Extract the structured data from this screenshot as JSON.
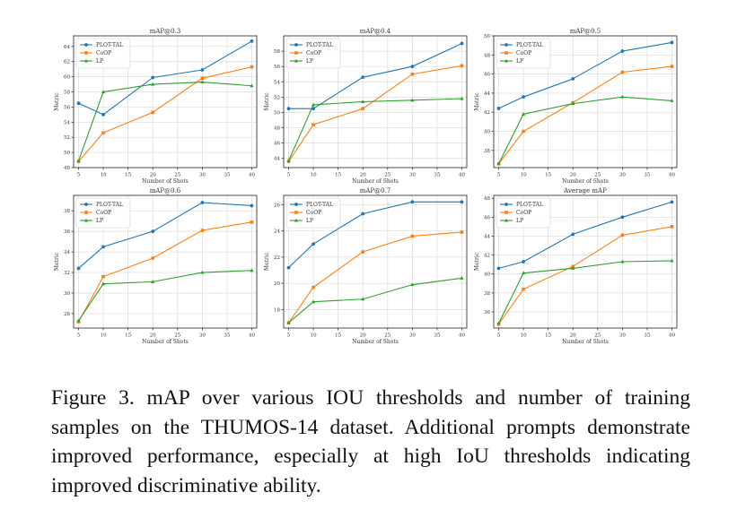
{
  "colors": {
    "PLOT-TAL": "#1f77b4",
    "CoOP": "#ff7f0e",
    "LP": "#2ca02c"
  },
  "chart_data": [
    {
      "type": "line",
      "title": "mAP@0.3",
      "xlabel": "Number of Shots",
      "ylabel": "Metric",
      "x": [
        5,
        10,
        20,
        30,
        40
      ],
      "xticks": [
        5,
        10,
        15,
        20,
        25,
        30,
        35,
        40
      ],
      "xlim": [
        4,
        41
      ],
      "ylim": [
        48.0,
        65.4
      ],
      "yticks": [
        48,
        50,
        52,
        54,
        56,
        58,
        60,
        62,
        64
      ],
      "grid": true,
      "legend": "top-left",
      "series": [
        {
          "name": "PLOT-TAL",
          "values": [
            56.5,
            55.0,
            59.9,
            60.9,
            64.7
          ]
        },
        {
          "name": "CoOP",
          "values": [
            48.8,
            52.6,
            55.3,
            59.8,
            61.3
          ]
        },
        {
          "name": "LP",
          "values": [
            48.9,
            58.0,
            59.0,
            59.3,
            58.8
          ]
        }
      ]
    },
    {
      "type": "line",
      "title": "mAP@0.4",
      "xlabel": "Number of Shots",
      "ylabel": "Metric",
      "x": [
        5,
        10,
        20,
        30,
        40
      ],
      "xticks": [
        5,
        10,
        15,
        20,
        25,
        30,
        35,
        40
      ],
      "xlim": [
        4,
        41
      ],
      "ylim": [
        42.8,
        60.0
      ],
      "yticks": [
        44,
        46,
        48,
        50,
        52,
        54,
        56,
        58
      ],
      "grid": true,
      "legend": "top-left",
      "series": [
        {
          "name": "PLOT-TAL",
          "values": [
            50.5,
            50.5,
            54.6,
            56.0,
            59.0
          ]
        },
        {
          "name": "CoOP",
          "values": [
            43.6,
            48.4,
            50.5,
            55.0,
            56.1
          ]
        },
        {
          "name": "LP",
          "values": [
            43.7,
            51.0,
            51.4,
            51.6,
            51.8
          ]
        }
      ]
    },
    {
      "type": "line",
      "title": "mAP@0.5",
      "xlabel": "Number of Shots",
      "ylabel": "Metric",
      "x": [
        5,
        10,
        20,
        30,
        40
      ],
      "xticks": [
        5,
        10,
        15,
        20,
        25,
        30,
        35,
        40
      ],
      "xlim": [
        4,
        41
      ],
      "ylim": [
        36.2,
        50.0
      ],
      "yticks": [
        38,
        40,
        42,
        44,
        46,
        48,
        50
      ],
      "grid": true,
      "legend": "top-left",
      "series": [
        {
          "name": "PLOT-TAL",
          "values": [
            42.4,
            43.6,
            45.5,
            48.4,
            49.3
          ]
        },
        {
          "name": "CoOP",
          "values": [
            36.6,
            40.0,
            43.0,
            46.2,
            46.8
          ]
        },
        {
          "name": "LP",
          "values": [
            36.6,
            41.8,
            42.9,
            43.6,
            43.2
          ]
        }
      ]
    },
    {
      "type": "line",
      "title": "mAP@0.6",
      "xlabel": "Number of Shots",
      "ylabel": "Metric",
      "x": [
        5,
        10,
        20,
        30,
        40
      ],
      "xticks": [
        5,
        10,
        15,
        20,
        25,
        30,
        35,
        40
      ],
      "xlim": [
        4,
        41
      ],
      "ylim": [
        26.6,
        39.5
      ],
      "yticks": [
        28,
        30,
        32,
        34,
        36,
        38
      ],
      "grid": true,
      "legend": "top-left",
      "series": [
        {
          "name": "PLOT-TAL",
          "values": [
            32.4,
            34.5,
            36.0,
            38.8,
            38.5
          ]
        },
        {
          "name": "CoOP",
          "values": [
            27.2,
            31.6,
            33.4,
            36.1,
            36.9
          ]
        },
        {
          "name": "LP",
          "values": [
            27.3,
            30.9,
            31.1,
            32.0,
            32.2
          ]
        }
      ]
    },
    {
      "type": "line",
      "title": "mAP@0.7",
      "xlabel": "Number of Shots",
      "ylabel": "Metric",
      "x": [
        5,
        10,
        20,
        30,
        40
      ],
      "xticks": [
        5,
        10,
        15,
        20,
        25,
        30,
        35,
        40
      ],
      "xlim": [
        4,
        41
      ],
      "ylim": [
        16.6,
        26.7
      ],
      "yticks": [
        18,
        20,
        22,
        24,
        26
      ],
      "grid": true,
      "legend": "top-left",
      "series": [
        {
          "name": "PLOT-TAL",
          "values": [
            21.2,
            23.0,
            25.3,
            26.2,
            26.2
          ]
        },
        {
          "name": "CoOP",
          "values": [
            17.0,
            19.7,
            22.4,
            23.6,
            23.9
          ]
        },
        {
          "name": "LP",
          "values": [
            17.0,
            18.6,
            18.8,
            19.9,
            20.4
          ]
        }
      ]
    },
    {
      "type": "line",
      "title": "Average mAP",
      "xlabel": "Number of Shots",
      "ylabel": "Metric",
      "x": [
        5,
        10,
        20,
        30,
        40
      ],
      "xticks": [
        5,
        10,
        15,
        20,
        25,
        30,
        35,
        40
      ],
      "xlim": [
        4,
        41
      ],
      "ylim": [
        34.3,
        48.3
      ],
      "yticks": [
        36,
        38,
        40,
        42,
        44,
        46,
        48
      ],
      "grid": true,
      "legend": "top-left",
      "series": [
        {
          "name": "PLOT-TAL",
          "values": [
            40.6,
            41.3,
            44.2,
            46.0,
            47.6
          ]
        },
        {
          "name": "CoOP",
          "values": [
            34.7,
            38.4,
            40.8,
            44.1,
            45.0
          ]
        },
        {
          "name": "LP",
          "values": [
            34.8,
            40.1,
            40.6,
            41.3,
            41.4
          ]
        }
      ]
    }
  ],
  "caption": {
    "text": "Figure 3. mAP over various IOU thresholds and number of training samples on the THUMOS-14 dataset. Additional prompts demonstrate improved performance, especially at high IoU thresholds indicating improved discriminative ability."
  }
}
